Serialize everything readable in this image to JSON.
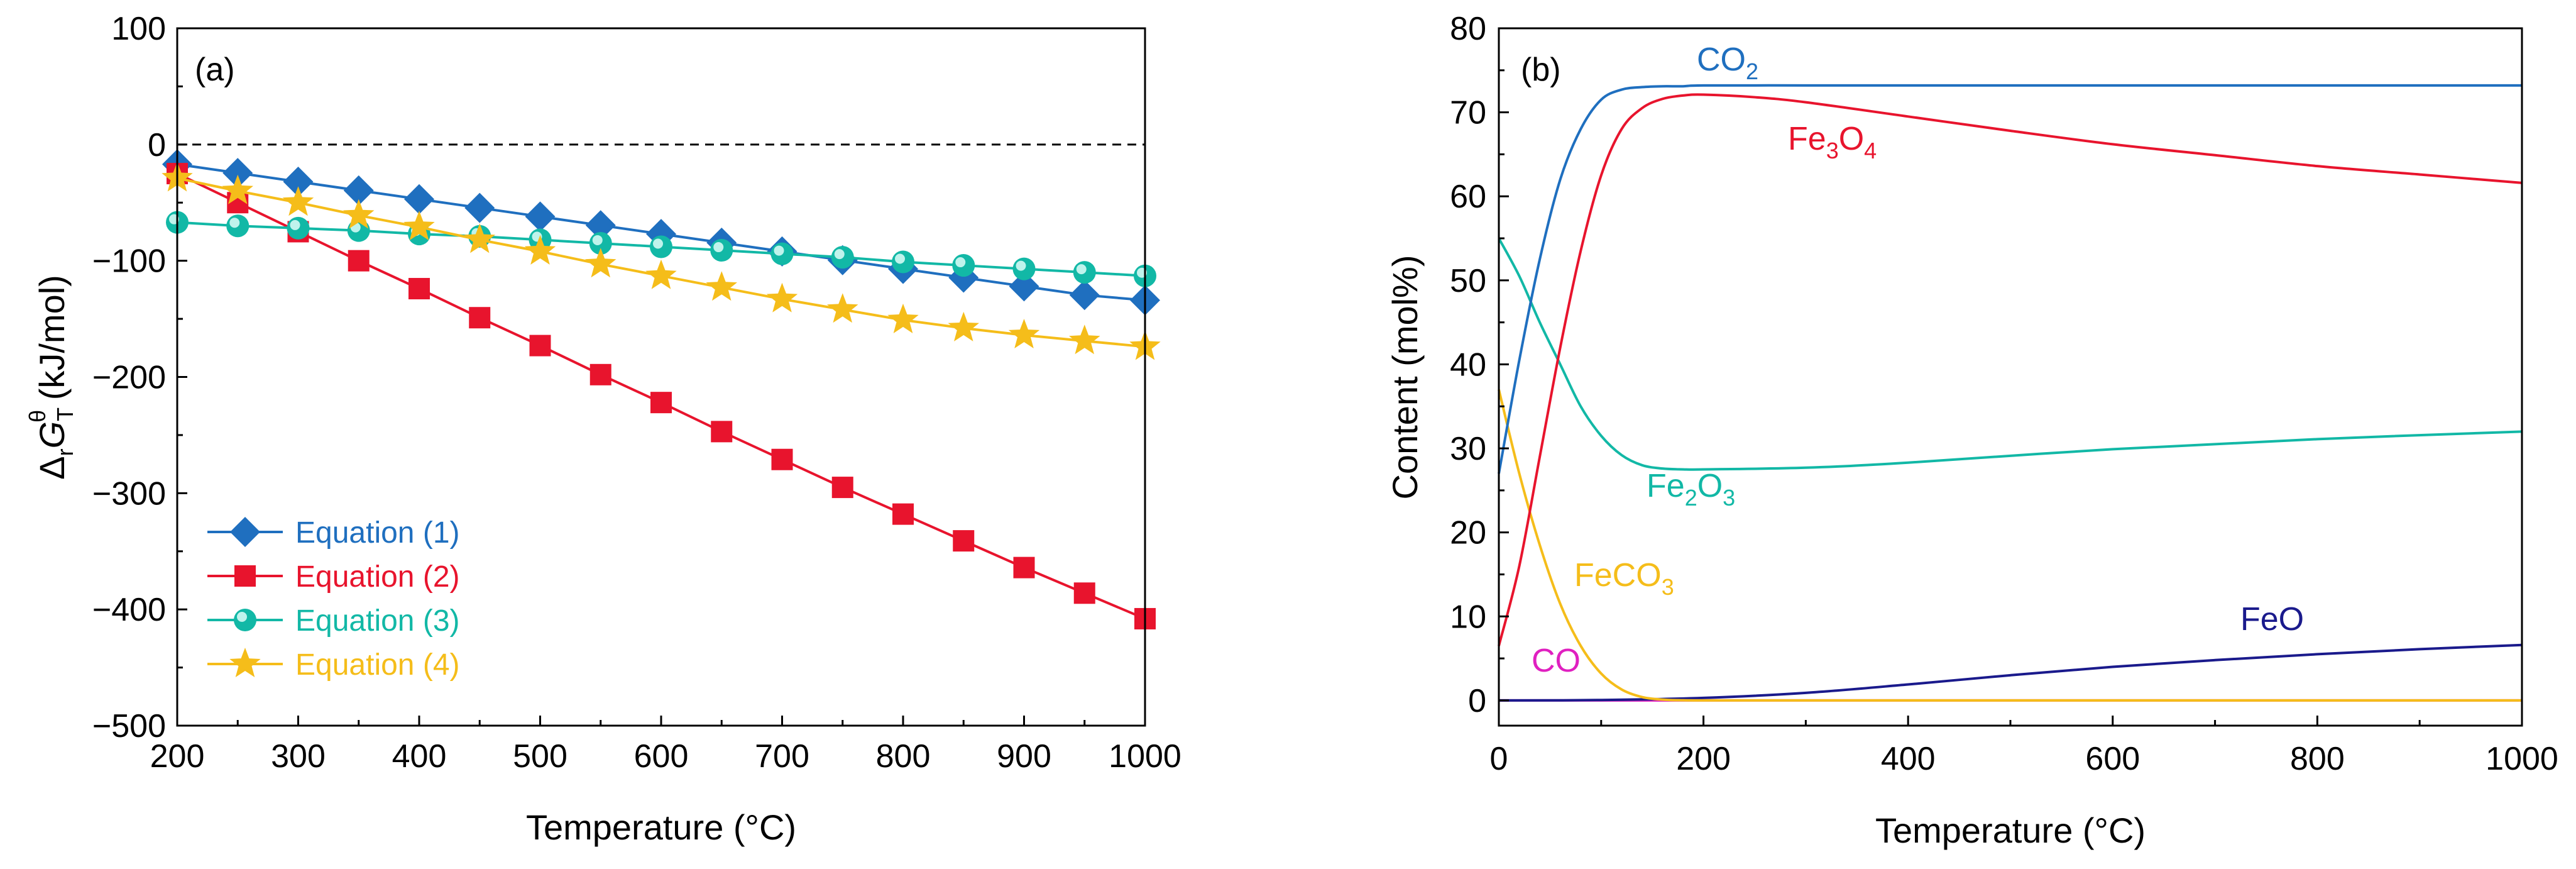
{
  "chart_data": [
    {
      "panel": "(a)",
      "type": "line",
      "xlabel": "Temperature (°C)",
      "ylabel": {
        "prefix": "Δ",
        "r": "r",
        "G": "G",
        "T": "T",
        "theta": "θ",
        "unit": " (kJ/mol)"
      },
      "xlim": [
        200,
        1000
      ],
      "ylim": [
        -500,
        100
      ],
      "xticks": [
        200,
        300,
        400,
        500,
        600,
        700,
        800,
        900,
        1000
      ],
      "yticks": [
        100,
        0,
        -100,
        -200,
        -300,
        -400,
        -500
      ],
      "zero_line": {
        "y": 0,
        "style": "dashed"
      },
      "x": [
        200,
        250,
        300,
        350,
        400,
        450,
        500,
        550,
        600,
        650,
        700,
        750,
        800,
        850,
        900,
        950,
        1000
      ],
      "series": [
        {
          "name": "Equation (1)",
          "color": "#1f6fbf",
          "marker": "diamond",
          "values": [
            -17,
            -24.5,
            -32,
            -39.5,
            -47,
            -54.5,
            -62,
            -69.5,
            -77,
            -84.5,
            -92,
            -99.5,
            -107,
            -114.5,
            -122,
            -129.5,
            -134
          ]
        },
        {
          "name": "Equation (2)",
          "color": "#e8142d",
          "marker": "square",
          "values": [
            -25,
            -50,
            -75,
            -100,
            -124,
            -149,
            -173,
            -198,
            -222,
            -247,
            -271,
            -295,
            -318,
            -341,
            -364,
            -386,
            -408
          ]
        },
        {
          "name": "Equation (3)",
          "color": "#12b8a6",
          "marker": "circle",
          "values": [
            -67,
            -70,
            -72,
            -74,
            -77,
            -79,
            -82,
            -85,
            -88,
            -91,
            -94,
            -97,
            -101,
            -104,
            -107,
            -110,
            -113
          ]
        },
        {
          "name": "Equation (4)",
          "color": "#f5bd1a",
          "marker": "star",
          "values": [
            -29,
            -40,
            -50,
            -61,
            -71,
            -82,
            -92,
            -103,
            -113,
            -123,
            -133,
            -142,
            -151,
            -158,
            -164,
            -169,
            -174
          ]
        }
      ],
      "legend": "lower-left"
    },
    {
      "panel": "(b)",
      "type": "line",
      "xlabel": "Temperature (°C)",
      "ylabel": "Content (mol%)",
      "xlim": [
        0,
        1000
      ],
      "ylim": [
        -3,
        80
      ],
      "xticks": [
        0,
        200,
        400,
        600,
        800,
        1000
      ],
      "yticks": [
        0,
        10,
        20,
        30,
        40,
        50,
        60,
        70,
        80
      ],
      "series": [
        {
          "name": "CO2",
          "label_main": "CO",
          "label_sub": "2",
          "color": "#1f6fbf",
          "x": [
            0,
            20,
            40,
            60,
            80,
            100,
            120,
            140,
            160,
            180,
            200,
            300,
            400,
            600,
            800,
            1000
          ],
          "values": [
            27,
            40.5,
            52.5,
            62,
            68,
            71.5,
            72.7,
            73,
            73.1,
            73.1,
            73.2,
            73.2,
            73.2,
            73.2,
            73.2,
            73.2
          ]
        },
        {
          "name": "Fe3O4",
          "label_main": "Fe",
          "label_sub1": "3",
          "label_mid": "O",
          "label_sub2": "4",
          "color": "#e8142d",
          "x": [
            0,
            20,
            40,
            60,
            80,
            100,
            120,
            140,
            160,
            180,
            200,
            250,
            300,
            400,
            500,
            600,
            700,
            800,
            900,
            1000
          ],
          "values": [
            6.5,
            16,
            29,
            42,
            53.5,
            62.5,
            68,
            70.5,
            71.6,
            72,
            72.1,
            71.8,
            71.2,
            69.5,
            67.8,
            66.2,
            64.9,
            63.6,
            62.6,
            61.6
          ]
        },
        {
          "name": "Fe2O3",
          "label_main": "Fe",
          "label_sub1": "2",
          "label_mid": "O",
          "label_sub2": "3",
          "color": "#12b8a6",
          "x": [
            0,
            20,
            40,
            60,
            80,
            100,
            120,
            140,
            160,
            180,
            200,
            300,
            400,
            600,
            800,
            1000
          ],
          "values": [
            55,
            50.5,
            45,
            40,
            35,
            31.5,
            29.2,
            28,
            27.6,
            27.5,
            27.5,
            27.7,
            28.3,
            29.9,
            31.1,
            32
          ]
        },
        {
          "name": "FeCO3",
          "label_main": "FeCO",
          "label_sub": "3",
          "color": "#f5bd1a",
          "x": [
            0,
            20,
            40,
            60,
            80,
            100,
            120,
            140,
            160,
            180,
            200
          ],
          "values": [
            37,
            27,
            18.5,
            11.5,
            6.5,
            3.2,
            1.3,
            0.4,
            0.1,
            0.02,
            0
          ]
        },
        {
          "name": "FeO",
          "color": "#1a1a8c",
          "x": [
            0,
            100,
            200,
            300,
            400,
            500,
            600,
            700,
            800,
            900,
            1000
          ],
          "values": [
            0,
            0.05,
            0.3,
            0.9,
            1.9,
            3,
            4,
            4.8,
            5.5,
            6.1,
            6.6
          ]
        },
        {
          "name": "CO",
          "color": "#e020c0",
          "x": [
            0,
            1000
          ],
          "values": [
            0,
            0
          ]
        }
      ]
    }
  ]
}
